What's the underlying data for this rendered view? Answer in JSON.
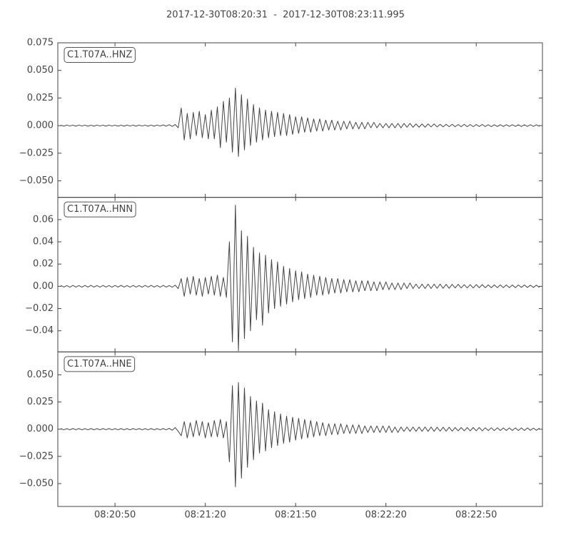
{
  "chart_data": {
    "type": "line",
    "title": "2017-12-30T08:20:31  -  2017-12-30T08:23:11.995",
    "xlim": [
      30031,
      30191.995
    ],
    "xticks": [
      {
        "value": 30050,
        "label": "08:20:50"
      },
      {
        "value": 30080,
        "label": "08:21:20"
      },
      {
        "value": 30110,
        "label": "08:21:50"
      },
      {
        "value": 30140,
        "label": "08:22:20"
      },
      {
        "value": 30170,
        "label": "08:22:50"
      }
    ],
    "x": [
      30032,
      30033,
      30034,
      30035,
      30036,
      30037,
      30038,
      30039,
      30040,
      30041,
      30042,
      30043,
      30044,
      30045,
      30046,
      30047,
      30048,
      30049,
      30050,
      30051,
      30052,
      30053,
      30054,
      30055,
      30056,
      30057,
      30058,
      30059,
      30060,
      30061,
      30062,
      30063,
      30064,
      30065,
      30066,
      30067,
      30068,
      30069,
      30070,
      30071,
      30072,
      30073,
      30074,
      30075,
      30076,
      30077,
      30078,
      30079,
      30080,
      30081,
      30082,
      30083,
      30084,
      30085,
      30086,
      30087,
      30088,
      30089,
      30090,
      30091,
      30092,
      30093,
      30094,
      30095,
      30096,
      30097,
      30098,
      30099,
      30100,
      30101,
      30102,
      30103,
      30104,
      30105,
      30106,
      30107,
      30108,
      30109,
      30110,
      30111,
      30112,
      30113,
      30114,
      30115,
      30116,
      30117,
      30118,
      30119,
      30120,
      30121,
      30122,
      30123,
      30124,
      30125,
      30126,
      30127,
      30128,
      30129,
      30130,
      30131,
      30132,
      30133,
      30134,
      30135,
      30136,
      30137,
      30138,
      30139,
      30140,
      30141,
      30142,
      30143,
      30144,
      30145,
      30146,
      30147,
      30148,
      30149,
      30150,
      30151,
      30152,
      30153,
      30154,
      30155,
      30156,
      30157,
      30158,
      30159,
      30160,
      30161,
      30162,
      30163,
      30164,
      30165,
      30166,
      30167,
      30168,
      30169,
      30170,
      30171,
      30172,
      30173,
      30174,
      30175,
      30176,
      30177,
      30178,
      30179,
      30180,
      30181,
      30182,
      30183,
      30184,
      30185,
      30186,
      30187,
      30188,
      30189,
      30190,
      30191
    ],
    "series": [
      {
        "name": "C1.T07A..HNZ",
        "color": "#444444",
        "ylim": [
          -0.065,
          0.075
        ],
        "yticks": [
          0.075,
          {
            "value": 0.05,
            "label": "0.050"
          },
          0.025,
          {
            "value": 0,
            "label": "0.000"
          },
          {
            "value": -0.025,
            "label": "−0.025"
          },
          {
            "value": -0.05,
            "label": "−0.050"
          }
        ],
        "values": [
          0.0004,
          -0.0005,
          0.0005,
          -0.0004,
          0.0004,
          -0.0005,
          0.0005,
          -0.0004,
          0.0004,
          -0.0005,
          0.0004,
          -0.0005,
          0.0005,
          -0.0004,
          0.0004,
          -0.0005,
          0.0005,
          -0.0004,
          0.0004,
          -0.0005,
          0.0004,
          -0.0005,
          0.0005,
          -0.0004,
          0.0004,
          -0.0005,
          0.0005,
          -0.0004,
          0.0004,
          -0.0005,
          0.0004,
          -0.0005,
          0.0005,
          -0.0004,
          0.0006,
          -0.0005,
          0.0008,
          -0.0007,
          0.001,
          -0.002,
          0.016,
          -0.013,
          0.011,
          -0.012,
          0.012,
          -0.009,
          0.013,
          -0.011,
          0.01,
          -0.012,
          0.014,
          -0.012,
          0.017,
          -0.02,
          0.022,
          -0.015,
          0.025,
          -0.024,
          0.034,
          -0.028,
          0.028,
          -0.022,
          0.024,
          -0.018,
          0.019,
          -0.015,
          0.016,
          -0.013,
          0.014,
          -0.011,
          0.013,
          -0.01,
          0.012,
          -0.009,
          0.011,
          -0.009,
          0.01,
          -0.008,
          0.008,
          -0.007,
          0.008,
          -0.006,
          0.007,
          -0.006,
          0.006,
          -0.005,
          0.006,
          -0.005,
          0.005,
          -0.004,
          0.005,
          -0.004,
          0.004,
          -0.004,
          0.004,
          -0.003,
          0.004,
          -0.003,
          0.003,
          -0.003,
          0.003,
          -0.003,
          0.003,
          -0.002,
          0.003,
          -0.002,
          0.002,
          -0.002,
          0.002,
          -0.002,
          0.002,
          -0.002,
          0.002,
          -0.002,
          0.002,
          -0.0015,
          0.002,
          -0.0015,
          0.0015,
          -0.0015,
          0.0015,
          -0.0015,
          0.0015,
          -0.0012,
          0.0015,
          -0.0012,
          0.0012,
          -0.0012,
          0.0012,
          -0.001,
          0.0012,
          -0.001,
          0.001,
          -0.001,
          0.0012,
          -0.001,
          0.001,
          -0.001,
          0.001,
          -0.0008,
          0.001,
          -0.0008,
          0.0008,
          -0.001,
          0.0008,
          -0.0008,
          0.0008,
          -0.0008,
          0.0008,
          -0.0007,
          0.0008,
          -0.0007,
          0.0007,
          -0.0008,
          0.0007,
          -0.0007,
          0.0008,
          -0.0007,
          0.0007,
          -0.0007
        ]
      },
      {
        "name": "C1.T07A..HNN",
        "color": "#444444",
        "ylim": [
          -0.059,
          0.08
        ],
        "yticks": [
          0.06,
          0.04,
          0.02,
          {
            "value": 0,
            "label": "0.00"
          },
          {
            "value": -0.02,
            "label": "−0.02"
          },
          {
            "value": -0.04,
            "label": "−0.04"
          }
        ],
        "values": [
          0.0008,
          -0.0007,
          0.0007,
          -0.0008,
          0.0008,
          -0.0007,
          0.0007,
          -0.0008,
          0.0008,
          -0.0007,
          0.0008,
          -0.0007,
          0.0007,
          -0.0008,
          0.0008,
          -0.0007,
          0.0007,
          -0.0008,
          0.0008,
          -0.0007,
          0.0008,
          -0.0007,
          0.0007,
          -0.0008,
          0.0008,
          -0.0007,
          0.0007,
          -0.0008,
          0.0008,
          -0.0007,
          0.0008,
          -0.0007,
          0.0007,
          -0.0008,
          0.0008,
          -0.0007,
          0.0007,
          -0.0008,
          0.001,
          -0.002,
          0.007,
          -0.009,
          0.008,
          -0.007,
          0.009,
          -0.008,
          0.007,
          -0.009,
          0.008,
          -0.007,
          0.009,
          -0.008,
          0.01,
          -0.009,
          0.008,
          -0.01,
          0.04,
          -0.05,
          0.073,
          -0.058,
          0.05,
          -0.047,
          0.045,
          -0.04,
          0.035,
          -0.03,
          0.03,
          -0.035,
          0.028,
          -0.024,
          0.024,
          -0.02,
          0.022,
          -0.018,
          0.018,
          -0.016,
          0.016,
          -0.014,
          0.014,
          -0.012,
          0.013,
          -0.011,
          0.011,
          -0.01,
          0.01,
          -0.008,
          0.009,
          -0.008,
          0.008,
          -0.007,
          0.007,
          -0.006,
          0.007,
          -0.006,
          0.006,
          -0.005,
          0.006,
          -0.005,
          0.005,
          -0.005,
          0.005,
          -0.004,
          0.005,
          -0.004,
          0.004,
          -0.004,
          0.004,
          -0.003,
          0.004,
          -0.003,
          0.003,
          -0.003,
          0.003,
          -0.003,
          0.003,
          -0.002,
          0.003,
          -0.002,
          0.002,
          -0.002,
          0.002,
          -0.002,
          0.002,
          -0.002,
          0.002,
          -0.0018,
          0.002,
          -0.0018,
          0.0018,
          -0.0018,
          0.0018,
          -0.0015,
          0.0018,
          -0.0015,
          0.0015,
          -0.0015,
          0.0015,
          -0.0015,
          0.0015,
          -0.0013,
          0.0015,
          -0.0013,
          0.0013,
          -0.0013,
          0.0013,
          -0.0012,
          0.0013,
          -0.0012,
          0.0012,
          -0.0012,
          0.0012,
          -0.0012,
          0.0012,
          -0.001,
          0.0012,
          -0.001,
          0.001,
          -0.001,
          0.001,
          -0.001
        ]
      },
      {
        "name": "C1.T07A..HNE",
        "color": "#444444",
        "ylim": [
          -0.071,
          0.071
        ],
        "yticks": [
          {
            "value": 0.05,
            "label": "0.050"
          },
          0.025,
          {
            "value": 0,
            "label": "0.000"
          },
          {
            "value": -0.025,
            "label": "−0.025"
          },
          {
            "value": -0.05,
            "label": "−0.050"
          }
        ],
        "values": [
          0.0006,
          -0.0006,
          0.0005,
          -0.0006,
          0.0006,
          -0.0005,
          0.0006,
          -0.0006,
          0.0005,
          -0.0006,
          0.0006,
          -0.0006,
          0.0005,
          -0.0006,
          0.0006,
          -0.0005,
          0.0006,
          -0.0006,
          0.0005,
          -0.0006,
          0.0006,
          -0.0006,
          0.0005,
          -0.0006,
          0.0006,
          -0.0005,
          0.0006,
          -0.0006,
          0.0005,
          -0.0006,
          0.0006,
          -0.0006,
          0.0005,
          -0.0006,
          0.0006,
          -0.0006,
          0.0008,
          -0.001,
          0.0015,
          -0.002,
          -0.006,
          0.007,
          -0.008,
          0.006,
          -0.007,
          0.008,
          -0.006,
          0.007,
          -0.008,
          0.006,
          -0.007,
          0.008,
          -0.007,
          0.009,
          -0.008,
          0.007,
          -0.03,
          0.04,
          -0.053,
          0.043,
          -0.045,
          0.038,
          -0.035,
          0.03,
          -0.028,
          0.026,
          -0.022,
          0.024,
          -0.02,
          0.018,
          -0.017,
          0.016,
          -0.015,
          0.014,
          -0.013,
          0.012,
          -0.012,
          0.011,
          -0.01,
          0.01,
          -0.009,
          0.009,
          -0.008,
          0.008,
          -0.007,
          0.007,
          -0.006,
          0.006,
          -0.006,
          0.005,
          -0.005,
          0.005,
          -0.005,
          0.005,
          -0.004,
          0.004,
          -0.004,
          0.004,
          -0.004,
          0.004,
          -0.004,
          0.003,
          -0.003,
          0.003,
          -0.003,
          0.003,
          -0.003,
          0.003,
          -0.003,
          0.003,
          -0.003,
          0.002,
          -0.003,
          0.002,
          -0.002,
          0.002,
          -0.002,
          0.002,
          -0.002,
          0.002,
          -0.002,
          0.002,
          -0.002,
          0.002,
          -0.002,
          0.0018,
          -0.0018,
          0.0018,
          -0.0018,
          0.0018,
          -0.0018,
          0.0015,
          -0.0015,
          0.0015,
          -0.0015,
          0.0015,
          -0.0015,
          0.0015,
          -0.0015,
          0.0015,
          -0.0015,
          0.0013,
          -0.0013,
          0.0013,
          -0.0013,
          0.0013,
          -0.0012,
          0.0012,
          -0.0012,
          0.0012,
          -0.0012,
          0.0012,
          -0.0012,
          0.0012,
          -0.0012,
          0.0012,
          -0.001,
          0.001,
          -0.001,
          0.001
        ]
      }
    ]
  }
}
